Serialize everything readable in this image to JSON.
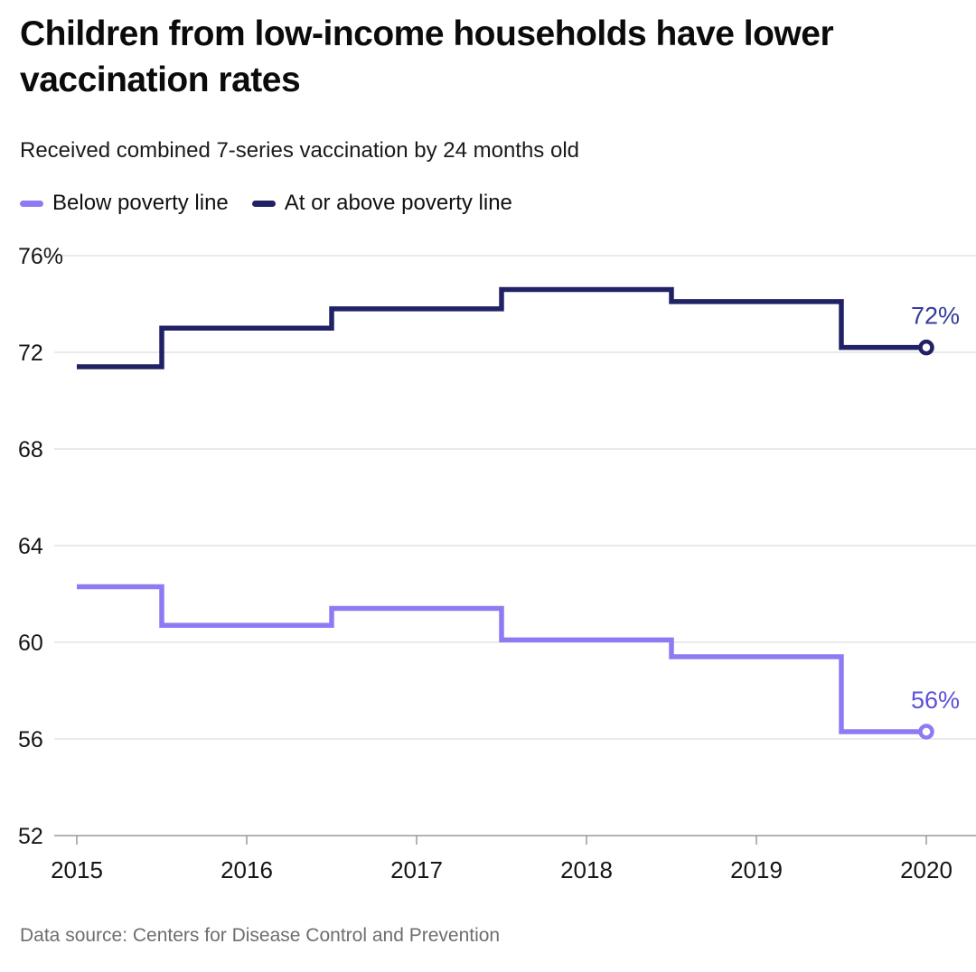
{
  "chart_data": {
    "type": "line",
    "subtype": "step-mid",
    "title": "Children from low-income households have lower vaccination rates",
    "subtitle": "Received combined 7-series vaccination by 24 months old",
    "x": [
      2015,
      2016,
      2017,
      2018,
      2019,
      2020
    ],
    "xtick_labels": [
      "2015",
      "2016",
      "2017",
      "2018",
      "2019",
      "2020"
    ],
    "series": [
      {
        "name": "Below poverty line",
        "color": "#8d7bf4",
        "values": [
          62.3,
          60.7,
          61.4,
          60.1,
          59.4,
          56.3
        ],
        "end_label": "56%",
        "end_label_color": "#5b50dd"
      },
      {
        "name": "At or above poverty line",
        "color": "#212266",
        "values": [
          71.4,
          73.0,
          73.8,
          74.6,
          74.1,
          72.2
        ],
        "end_label": "72%",
        "end_label_color": "#343b9b"
      }
    ],
    "ylim": [
      52,
      76
    ],
    "yticks": [
      52,
      56,
      60,
      64,
      68,
      72,
      76
    ],
    "ytick_labels": [
      "52",
      "56",
      "60",
      "64",
      "68",
      "72",
      "76%"
    ],
    "grid": true,
    "legend_position": "top-left"
  },
  "footer": {
    "source": "Data source: Centers for Disease Control and Prevention"
  }
}
